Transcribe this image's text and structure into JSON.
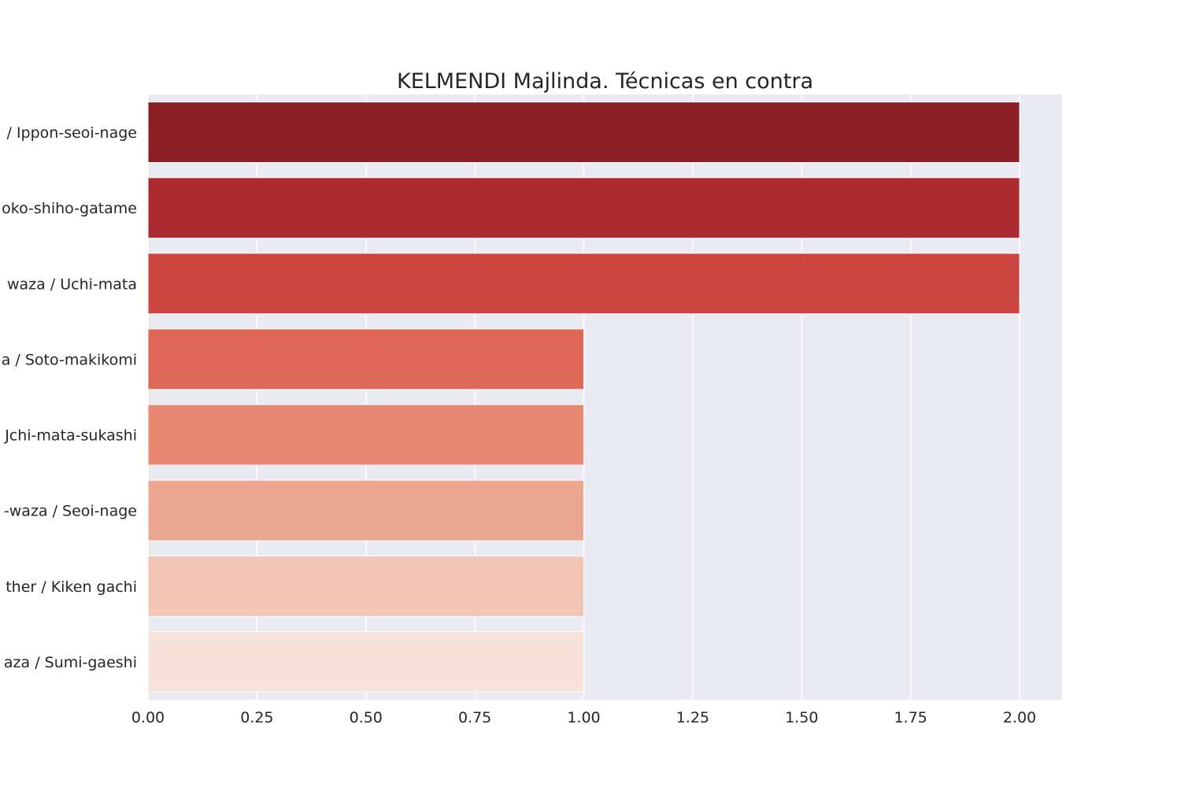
{
  "chart_data": {
    "type": "bar",
    "orientation": "horizontal",
    "title": "KELMENDI Majlinda. Técnicas en contra",
    "xlabel": "",
    "ylabel": "",
    "categories": [
      "/ Ippon-seoi-nage",
      "oko-shiho-gatame",
      "waza / Uchi-mata",
      "a / Soto-makikomi",
      "Jchi-mata-sukashi",
      "-waza / Seoi-nage",
      "ther / Kiken gachi",
      "aza / Sumi-gaeshi"
    ],
    "values": [
      2,
      2,
      2,
      1,
      1,
      1,
      1,
      1
    ],
    "colors": [
      "#8b1f24",
      "#ab2b31",
      "#cb4641",
      "#de6758",
      "#e88872",
      "#eca793",
      "#f2c6b6",
      "#f7e3dc"
    ],
    "xlim": [
      0,
      2.1
    ],
    "xticks": [
      "0.00",
      "0.25",
      "0.50",
      "0.75",
      "1.00",
      "1.25",
      "1.50",
      "1.75",
      "2.00"
    ],
    "grid": true,
    "background": "#eaeaf2",
    "grid_color": "#ffffff"
  }
}
